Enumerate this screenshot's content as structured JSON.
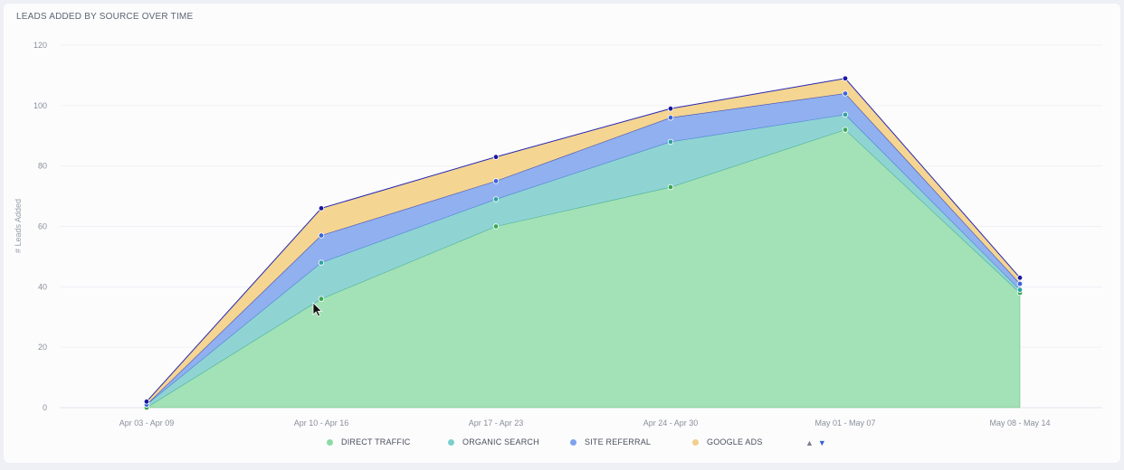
{
  "chart_data": {
    "type": "area",
    "stacked": true,
    "title": "LEADS ADDED BY SOURCE OVER TIME",
    "ylabel": "# Leads Added",
    "xlabel": "",
    "categories": [
      "Apr 03 - Apr 09",
      "Apr 10 - Apr 16",
      "Apr 17 - Apr 23",
      "Apr 24 - Apr 30",
      "May 01 - May 07",
      "May 08 - May 14"
    ],
    "ylim": [
      0,
      120
    ],
    "yticks": [
      0,
      20,
      40,
      60,
      80,
      100,
      120
    ],
    "grid": true,
    "legend_position": "bottom",
    "series": [
      {
        "name": "DIRECT TRAFFIC",
        "color": "#a3e1b6",
        "point_color": "#3aa856",
        "values": [
          0,
          36,
          60,
          73,
          92,
          38
        ]
      },
      {
        "name": "ORGANIC SEARCH",
        "color": "#8fd4d3",
        "point_color": "#2fa3a1",
        "values": [
          1,
          12,
          9,
          15,
          5,
          1
        ]
      },
      {
        "name": "SITE REFERRAL",
        "color": "#90b0f0",
        "point_color": "#3b64d8",
        "values": [
          0,
          9,
          6,
          8,
          7,
          2
        ]
      },
      {
        "name": "GOOGLE ADS",
        "color": "#f4d592",
        "point_color": "#1a1aa0",
        "values": [
          1,
          9,
          8,
          3,
          5,
          2
        ]
      }
    ]
  },
  "legend": {
    "items": [
      "DIRECT TRAFFIC",
      "ORGANIC SEARCH",
      "SITE REFERRAL",
      "GOOGLE ADS"
    ],
    "dot_colors": [
      "#8cdba3",
      "#7ccfcc",
      "#7fa2ec",
      "#f2cf8b"
    ],
    "up_arrow": "▲",
    "down_arrow": "▼"
  },
  "icons": {
    "cursor": "mouse-pointer-icon"
  }
}
